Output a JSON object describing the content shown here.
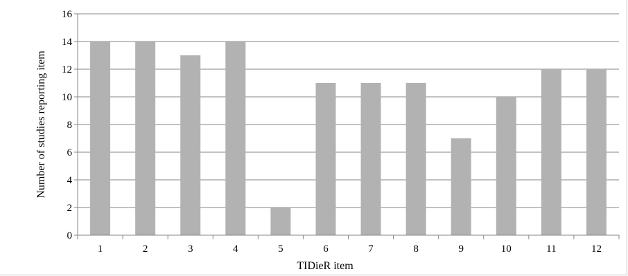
{
  "chart_data": {
    "type": "bar",
    "categories": [
      "1",
      "2",
      "3",
      "4",
      "5",
      "6",
      "7",
      "8",
      "9",
      "10",
      "11",
      "12"
    ],
    "values": [
      14,
      14,
      13,
      14,
      2,
      11,
      11,
      11,
      7,
      10,
      12,
      12
    ],
    "title": "",
    "xlabel": "TIDieR item",
    "ylabel": "Number of studies reporting item",
    "ylim": [
      0,
      16
    ],
    "yticks": [
      "0",
      "2",
      "4",
      "6",
      "8",
      "10",
      "12",
      "14",
      "16"
    ],
    "grid": true,
    "legend": "none",
    "colors": {
      "bar": "#b2b2b2",
      "grid": "#868686",
      "axis": "#868686"
    }
  }
}
